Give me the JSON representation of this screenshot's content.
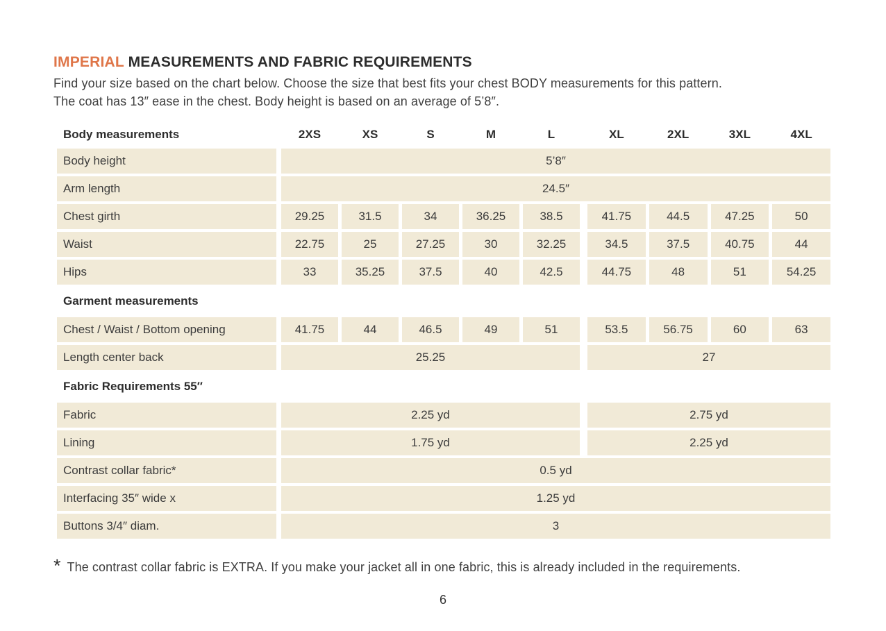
{
  "header": {
    "title_highlight": "IMPERIAL",
    "title_rest": " MEASUREMENTS AND FABRIC REQUIREMENTS",
    "intro_line1": "Find your size based on the chart below. Choose the size that best fits your chest BODY measurements for this pattern.",
    "intro_line2": "The coat has 13″ ease in the chest. Body height is based on an average of 5’8″."
  },
  "colors": {
    "accent_orange": "#df7649",
    "cell_beige": "#f1ead7",
    "text_dark": "#2d2d2d"
  },
  "table": {
    "header_label": "Body measurements",
    "size_columns": [
      "2XS",
      "XS",
      "S",
      "M",
      "L",
      "XL",
      "2XL",
      "3XL",
      "4XL"
    ],
    "rows": [
      {
        "type": "full",
        "label": "Body height",
        "value": "5’8″"
      },
      {
        "type": "full",
        "label": "Arm length",
        "value": "24.5″"
      },
      {
        "type": "cells",
        "label": "Chest girth",
        "values": [
          "29.25",
          "31.5",
          "34",
          "36.25",
          "38.5",
          "41.75",
          "44.5",
          "47.25",
          "50"
        ]
      },
      {
        "type": "cells",
        "label": "Waist",
        "values": [
          "22.75",
          "25",
          "27.25",
          "30",
          "32.25",
          "34.5",
          "37.5",
          "40.75",
          "44"
        ]
      },
      {
        "type": "cells",
        "label": "Hips",
        "values": [
          "33",
          "35.25",
          "37.5",
          "40",
          "42.5",
          "44.75",
          "48",
          "51",
          "54.25"
        ]
      },
      {
        "type": "section",
        "label": "Garment measurements"
      },
      {
        "type": "cells",
        "label": "Chest / Waist / Bottom opening",
        "values": [
          "41.75",
          "44",
          "46.5",
          "49",
          "51",
          "53.5",
          "56.75",
          "60",
          "63"
        ]
      },
      {
        "type": "split",
        "label": "Length center back",
        "left": "25.25",
        "right": "27"
      },
      {
        "type": "section",
        "label": "Fabric Requirements 55″"
      },
      {
        "type": "split",
        "label": "Fabric",
        "left": "2.25 yd",
        "right": "2.75 yd"
      },
      {
        "type": "split",
        "label": "Lining",
        "left": "1.75 yd",
        "right": "2.25 yd"
      },
      {
        "type": "full",
        "label": "Contrast collar fabric*",
        "value": "0.5 yd"
      },
      {
        "type": "full",
        "label": "Interfacing 35″ wide x",
        "value": "1.25 yd"
      },
      {
        "type": "full",
        "label": "Buttons 3/4″ diam.",
        "value": "3"
      }
    ]
  },
  "footnote": {
    "marker": "*",
    "text": "The contrast collar fabric is EXTRA. If you make your jacket all in one fabric, this is already included in the requirements."
  },
  "footer": {
    "page_number": "6"
  }
}
